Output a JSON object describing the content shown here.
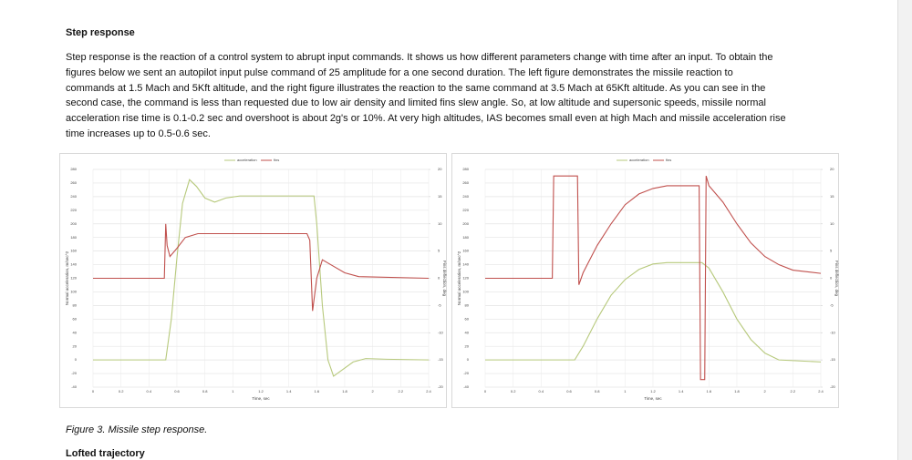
{
  "heading": "Step response",
  "paragraph_lines": [
    "Step response is the reaction of a control system to abrupt input commands. It shows us how different parameters change with time after an input. To obtain the",
    "figures below we sent an autopilot input pulse command of 25 amplitude for a one second duration. The left figure demonstrates the missile reaction to",
    "commands at 1.5 Mach and 5Kft altitude, and the right figure illustrates the reaction to the same command at 3.5 Mach at 65Kft altitude. As you can see in the",
    "second case, the command is less than requested due to low air density and limited fins slew angle. So, at low altitude and supersonic speeds, missile normal",
    "acceleration rise time is 0.1-0.2 sec and overshoot is about 2g's or 10%. At very high altitudes, IAS becomes small even at high Mach and missile acceleration rise",
    "time increases up to 0.5-0.6 sec."
  ],
  "chart_data": [
    {
      "type": "line",
      "x_label": "Time, sec",
      "y_label": "Normal acceleration, m/sec^2",
      "y2_label": "Fins deflection, deg",
      "xlim": [
        0,
        2.4
      ],
      "xticks": [
        0,
        0.2,
        0.4,
        0.6,
        0.8,
        1,
        1.2,
        1.4,
        1.6,
        1.8,
        2,
        2.2,
        2.4
      ],
      "ylim": [
        -40,
        280
      ],
      "yticks": [
        -40,
        -20,
        0,
        20,
        40,
        60,
        80,
        100,
        120,
        140,
        160,
        180,
        200,
        220,
        240,
        260,
        280
      ],
      "y2lim": [
        -20,
        20
      ],
      "y2ticks": [
        -20,
        -15,
        -10,
        -5,
        0,
        5,
        10,
        15,
        20
      ],
      "grid": true,
      "series": [
        {
          "name": "acceleration",
          "color": "#b7c97c",
          "x": [
            0,
            0.5,
            0.52,
            0.56,
            0.6,
            0.64,
            0.69,
            0.74,
            0.8,
            0.87,
            0.95,
            1.05,
            1.58,
            1.6,
            1.64,
            1.68,
            1.72,
            1.78,
            1.86,
            1.95,
            2.1,
            2.4
          ],
          "values": [
            0,
            0,
            0,
            60,
            150,
            230,
            265,
            255,
            238,
            232,
            238,
            241,
            241,
            200,
            80,
            0,
            -24,
            -15,
            -3,
            2,
            1,
            0
          ]
        },
        {
          "name": "fins",
          "color": "#c0504d",
          "axis": "y2",
          "x": [
            0,
            0.51,
            0.52,
            0.53,
            0.55,
            0.6,
            0.66,
            0.75,
            1.53,
            1.55,
            1.57,
            1.6,
            1.64,
            1.7,
            1.8,
            1.9,
            2.4
          ],
          "values": [
            0,
            0,
            10,
            6,
            4,
            5.5,
            7.5,
            8.2,
            8.2,
            7,
            -6,
            0,
            3.4,
            2.5,
            1,
            0.3,
            0
          ]
        }
      ]
    },
    {
      "type": "line",
      "x_label": "Time, sec",
      "y_label": "Normal acceleration, m/sec^2",
      "y2_label": "Fins deflection, deg",
      "xlim": [
        0,
        2.4
      ],
      "xticks": [
        0,
        0.2,
        0.4,
        0.6,
        0.8,
        1,
        1.2,
        1.4,
        1.6,
        1.8,
        2,
        2.2,
        2.4
      ],
      "ylim": [
        -40,
        280
      ],
      "yticks": [
        -40,
        -20,
        0,
        20,
        40,
        60,
        80,
        100,
        120,
        140,
        160,
        180,
        200,
        220,
        240,
        260,
        280
      ],
      "y2lim": [
        -20,
        20
      ],
      "y2ticks": [
        -20,
        -15,
        -10,
        -5,
        0,
        5,
        10,
        15,
        20
      ],
      "grid": true,
      "series": [
        {
          "name": "acceleration",
          "color": "#b7c97c",
          "x": [
            0,
            0.64,
            0.7,
            0.8,
            0.9,
            1,
            1.1,
            1.2,
            1.3,
            1.55,
            1.6,
            1.7,
            1.8,
            1.9,
            2,
            2.1,
            2.4
          ],
          "values": [
            0,
            0,
            20,
            60,
            95,
            118,
            133,
            141,
            143,
            143,
            135,
            100,
            60,
            30,
            10,
            0,
            -3
          ]
        },
        {
          "name": "fins",
          "color": "#c0504d",
          "axis": "y2",
          "x": [
            0,
            0.48,
            0.49,
            0.66,
            0.67,
            0.7,
            0.8,
            0.9,
            1,
            1.1,
            1.2,
            1.3,
            1.53,
            1.54,
            1.57,
            1.58,
            1.6,
            1.7,
            1.8,
            1.9,
            2,
            2.1,
            2.2,
            2.4
          ],
          "values": [
            0,
            0,
            18.8,
            18.8,
            -1.2,
            1,
            6,
            10,
            13.5,
            15.5,
            16.5,
            17,
            17,
            -18.6,
            -18.6,
            18.8,
            17,
            14,
            10,
            6.5,
            4,
            2.5,
            1.5,
            0.9
          ]
        }
      ]
    }
  ],
  "caption": "Figure 3. Missile step response.",
  "next_heading": "Lofted trajectory"
}
